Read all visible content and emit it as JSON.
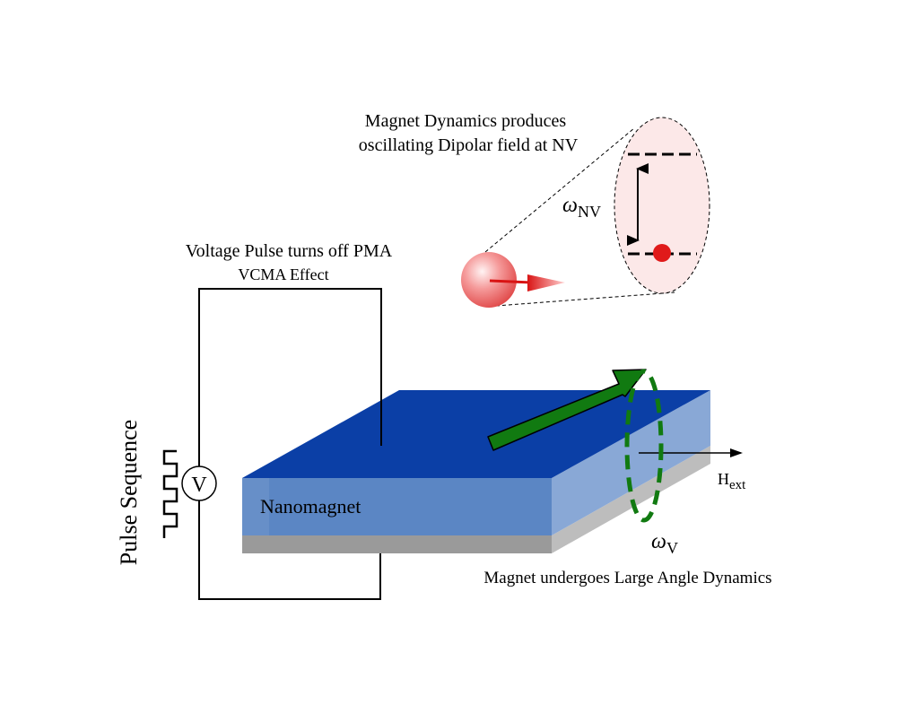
{
  "labels": {
    "dipolar_line1": "Magnet Dynamics produces",
    "dipolar_line2": "oscillating Dipolar field at NV",
    "voltage_line1": "Voltage Pulse turns off PMA",
    "voltage_line2": "VCMA Effect",
    "pulse_sequence": "Pulse Sequence",
    "voltmeter": "V",
    "nanomagnet": "Nanomagnet",
    "h_ext_main": "H",
    "h_ext_sub": "ext",
    "omega_nv_main": "ω",
    "omega_nv_sub": "NV",
    "omega_v_main": "ω",
    "omega_v_sub": "V",
    "large_angle": "Magnet undergoes Large Angle Dynamics"
  },
  "colors": {
    "magnet_top": "#0b3fa6",
    "magnet_front": "#5b86c4",
    "magnet_side": "#89a8d6",
    "substrate": "#9a9a9a",
    "arrow": "#117a11",
    "nv_sphere": "#f06a6a",
    "nv_dot": "#e01a1a",
    "ellipse_fill": "#fce8e8"
  }
}
